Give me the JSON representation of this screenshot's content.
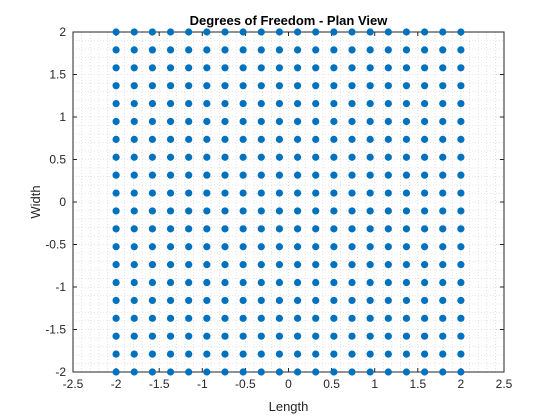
{
  "chart_data": {
    "type": "scatter",
    "title": "Degrees of Freedom - Plan View",
    "xlabel": "Length",
    "ylabel": "Width",
    "xlim": [
      -2.5,
      2.5
    ],
    "ylim": [
      -2,
      2
    ],
    "xticks": [
      -2.5,
      -2,
      -1.5,
      -1,
      -0.5,
      0,
      0.5,
      1,
      1.5,
      2,
      2.5
    ],
    "xtick_labels": [
      "-2.5",
      "-2",
      "-1.5",
      "-1",
      "-0.5",
      "0",
      "0.5",
      "1",
      "1.5",
      "2",
      "2.5"
    ],
    "yticks": [
      -2,
      -1.5,
      -1,
      -0.5,
      0,
      0.5,
      1,
      1.5,
      2
    ],
    "ytick_labels": [
      "-2",
      "-1.5",
      "-1",
      "-0.5",
      "0",
      "0.5",
      "1",
      "1.5",
      "2"
    ],
    "grid": "minor-dotted",
    "marker_color": "#0072BD",
    "x": [
      -2,
      -1.7895,
      -1.5789,
      -1.3684,
      -1.1579,
      -0.9474,
      -0.7368,
      -0.5263,
      -0.3158,
      -0.1053,
      0.1053,
      0.3158,
      0.5263,
      0.7368,
      0.9474,
      1.1579,
      1.3684,
      1.5789,
      1.7895,
      2
    ],
    "y": [
      -2,
      -1.7895,
      -1.5789,
      -1.3684,
      -1.1579,
      -0.9474,
      -0.7368,
      -0.5263,
      -0.3158,
      -0.1053,
      0.1053,
      0.3158,
      0.5263,
      0.7368,
      0.9474,
      1.1579,
      1.3684,
      1.5789,
      1.7895,
      2
    ],
    "points_layout": "grid: every x paired with every y"
  }
}
